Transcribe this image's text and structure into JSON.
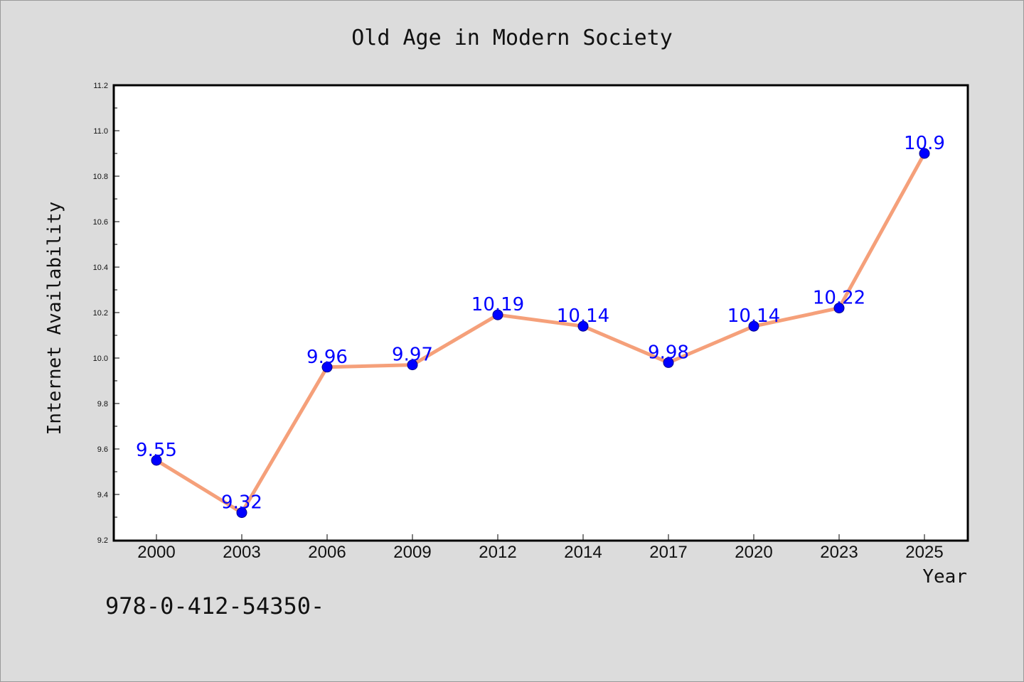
{
  "chart_data": {
    "type": "line",
    "title": "Old Age in Modern Society",
    "xlabel": "Year",
    "ylabel": "Internet Availability",
    "categories": [
      "2000",
      "2003",
      "2006",
      "2009",
      "2012",
      "2014",
      "2017",
      "2020",
      "2023",
      "2025"
    ],
    "series": [
      {
        "values": [
          9.55,
          9.32,
          9.96,
          9.97,
          10.19,
          10.14,
          9.98,
          10.14,
          10.22,
          10.9
        ],
        "value_labels": [
          "9.55",
          "9.32",
          "9.96",
          "9.97",
          "10.19",
          "10.14",
          "9.98",
          "10.14",
          "10.22",
          "10.9"
        ]
      }
    ],
    "ylim": [
      9.2,
      11.2
    ],
    "yticks": [
      "9.2",
      "9.4",
      "9.6",
      "9.8",
      "10.0",
      "10.2",
      "10.4",
      "10.6",
      "10.8",
      "11.0",
      "11.2"
    ],
    "grid": false,
    "legend": "none",
    "line_color": "#f5a07a",
    "marker_color": "#0000ff",
    "label_color": "#0000ff"
  },
  "footer_text": "978-0-412-54350-"
}
